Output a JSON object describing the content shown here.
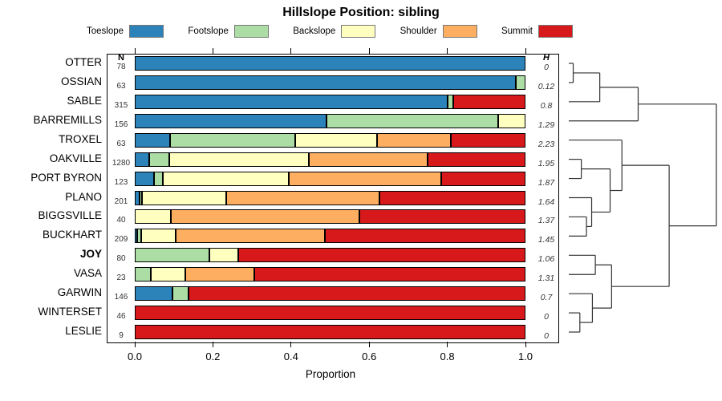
{
  "chart_data": {
    "type": "bar",
    "orientation": "horizontal-stacked",
    "title": "Hillslope Position: sibling",
    "xlabel": "Proportion",
    "xlim": [
      0,
      1
    ],
    "xticks": [
      0,
      0.2,
      0.4,
      0.6,
      0.8,
      1.0
    ],
    "xtick_labels": [
      "0.0",
      "0.2",
      "0.4",
      "0.6",
      "0.8",
      "1.0"
    ],
    "n_header": "N",
    "h_header": "H",
    "legend": [
      {
        "label": "Toeslope",
        "color": "#2B83BA"
      },
      {
        "label": "Footslope",
        "color": "#ABDDA4"
      },
      {
        "label": "Backslope",
        "color": "#FFFFBF"
      },
      {
        "label": "Shoulder",
        "color": "#FDAE61"
      },
      {
        "label": "Summit",
        "color": "#D7191C"
      }
    ],
    "series": [
      {
        "name": "OTTER",
        "n": "78",
        "h": "0",
        "bold": false,
        "values": [
          1,
          0,
          0,
          0,
          0
        ]
      },
      {
        "name": "OSSIAN",
        "n": "63",
        "h": "0.12",
        "bold": false,
        "values": [
          0.975,
          0.025,
          0,
          0,
          0
        ]
      },
      {
        "name": "SABLE",
        "n": "315",
        "h": "0.8",
        "bold": false,
        "values": [
          0.8,
          0.015,
          0,
          0,
          0.185
        ]
      },
      {
        "name": "BARREMILLS",
        "n": "156",
        "h": "1.29",
        "bold": false,
        "values": [
          0.49,
          0.44,
          0.07,
          0,
          0
        ]
      },
      {
        "name": "TROXEL",
        "n": "63",
        "h": "2.23",
        "bold": false,
        "values": [
          0.09,
          0.32,
          0.21,
          0.19,
          0.19
        ]
      },
      {
        "name": "OAKVILLE",
        "n": "1280",
        "h": "1.95",
        "bold": false,
        "values": [
          0.037,
          0.052,
          0.356,
          0.305,
          0.25
        ]
      },
      {
        "name": "PORT BYRON",
        "n": "123",
        "h": "1.87",
        "bold": false,
        "values": [
          0.05,
          0.022,
          0.323,
          0.39,
          0.215
        ]
      },
      {
        "name": "PLANO",
        "n": "201",
        "h": "1.64",
        "bold": false,
        "values": [
          0.012,
          0.006,
          0.217,
          0.392,
          0.373
        ]
      },
      {
        "name": "BIGGSVILLE",
        "n": "40",
        "h": "1.37",
        "bold": false,
        "values": [
          0,
          0,
          0.092,
          0.483,
          0.425
        ]
      },
      {
        "name": "BUCKHART",
        "n": "209",
        "h": "1.45",
        "bold": false,
        "values": [
          0.006,
          0.01,
          0.089,
          0.382,
          0.513
        ]
      },
      {
        "name": "JOY",
        "n": "80",
        "h": "1.06",
        "bold": true,
        "values": [
          0,
          0.19,
          0.075,
          0,
          0.735
        ]
      },
      {
        "name": "VASA",
        "n": "23",
        "h": "1.31",
        "bold": false,
        "values": [
          0,
          0.041,
          0.088,
          0.177,
          0.694
        ]
      },
      {
        "name": "GARWIN",
        "n": "146",
        "h": "0.7",
        "bold": false,
        "values": [
          0.097,
          0.04,
          0,
          0,
          0.863
        ]
      },
      {
        "name": "WINTERSET",
        "n": "46",
        "h": "0",
        "bold": false,
        "values": [
          0,
          0,
          0,
          0,
          1
        ]
      },
      {
        "name": "LESLIE",
        "n": "9",
        "h": "0",
        "bold": false,
        "values": [
          0,
          0,
          0,
          0,
          1
        ]
      }
    ],
    "dendrogram": {
      "h": 1.0,
      "children": [
        {
          "h": 0.47,
          "children": [
            {
              "h": 0.21,
              "children": [
                {
                  "h": 0.03,
                  "children": [
                    {
                      "leaf": "OTTER"
                    },
                    {
                      "leaf": "OSSIAN"
                    }
                  ]
                },
                {
                  "leaf": "SABLE"
                }
              ]
            },
            {
              "leaf": "BARREMILLS"
            }
          ]
        },
        {
          "h": 0.68,
          "children": [
            {
              "h": 0.36,
              "children": [
                {
                  "leaf": "TROXEL"
                },
                {
                  "h": 0.28,
                  "children": [
                    {
                      "h": 0.085,
                      "children": [
                        {
                          "leaf": "OAKVILLE"
                        },
                        {
                          "leaf": "PORT BYRON"
                        }
                      ]
                    },
                    {
                      "h": 0.155,
                      "children": [
                        {
                          "leaf": "PLANO"
                        },
                        {
                          "h": 0.12,
                          "children": [
                            {
                              "leaf": "BIGGSVILLE"
                            },
                            {
                              "leaf": "BUCKHART"
                            }
                          ]
                        }
                      ]
                    }
                  ]
                }
              ]
            },
            {
              "h": 0.29,
              "children": [
                {
                  "h": 0.18,
                  "children": [
                    {
                      "leaf": "JOY"
                    },
                    {
                      "leaf": "VASA"
                    }
                  ]
                },
                {
                  "h": 0.16,
                  "children": [
                    {
                      "leaf": "GARWIN"
                    },
                    {
                      "h": 0.075,
                      "children": [
                        {
                          "leaf": "WINTERSET"
                        },
                        {
                          "leaf": "LESLIE"
                        }
                      ]
                    }
                  ]
                }
              ]
            }
          ]
        }
      ]
    }
  }
}
